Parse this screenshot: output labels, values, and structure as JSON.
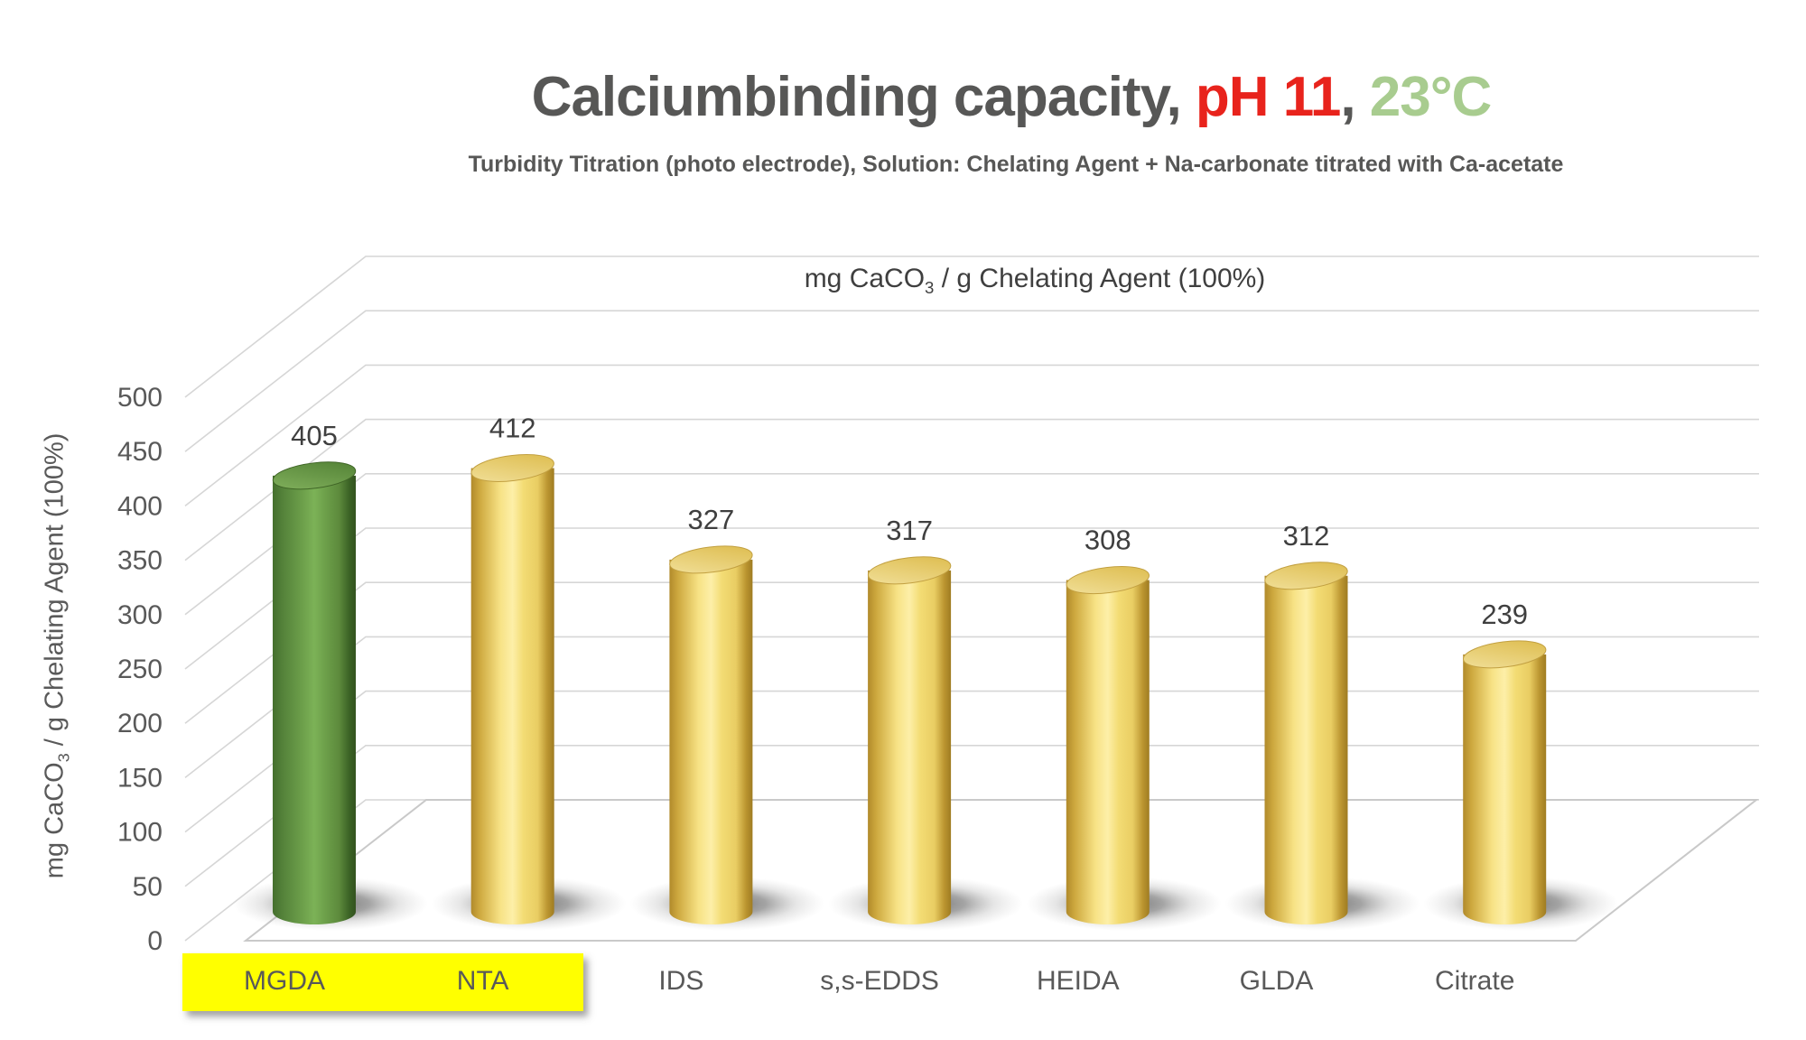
{
  "title": {
    "part1": "Calciumbinding capacity, ",
    "part2": "pH 11",
    "part3": ", ",
    "part4": "23°C"
  },
  "subtitle": "Turbidity Titration (photo electrode), Solution: Chelating Agent + Na-carbonate titrated with Ca-acetate",
  "top_axis_label": {
    "prefix": "mg CaCO",
    "sub": "3",
    "suffix": " / g Chelating Agent (100%)"
  },
  "y_axis_label": {
    "prefix": "mg CaCO",
    "sub": "3",
    "suffix": " / g Chelating Agent (100%)"
  },
  "chart_data": {
    "type": "bar",
    "style": "3d-cylinder",
    "title": "Calciumbinding capacity, pH 11, 23°C",
    "categories": [
      "MGDA",
      "NTA",
      "IDS",
      "s,s-EDDS",
      "HEIDA",
      "GLDA",
      "Citrate"
    ],
    "values": [
      405,
      412,
      327,
      317,
      308,
      312,
      239
    ],
    "bar_styles": [
      "green",
      "yellow",
      "yellow",
      "yellow",
      "yellow",
      "yellow",
      "yellow"
    ],
    "highlighted_categories": [
      "MGDA",
      "NTA"
    ],
    "value_labels_shown": true,
    "ylabel": "mg CaCO3 / g Chelating Agent (100%)",
    "inner_wall_label": "mg CaCO3 / g Chelating Agent (100%)",
    "ylim": [
      0,
      500
    ],
    "ytick_step": 50,
    "grid": true,
    "legend": "none"
  },
  "colors": {
    "title_gray": "#575756",
    "title_red": "#e8231c",
    "title_green": "#a8cc8f",
    "axis_text": "#595959",
    "value_text": "#3f3f3f",
    "gridline": "#d6d6d6",
    "floor_stroke": "#c9c9c9",
    "highlight_yellow": "#ffff00",
    "bar_yellow_dark": "#b18a2b",
    "bar_yellow_mid": "#e9cd63",
    "bar_yellow_light": "#fdefa8",
    "bar_yellow_top_light": "#f2e19c",
    "bar_yellow_top_dark": "#dcba4a",
    "bar_green_dark": "#33531f",
    "bar_green_mid": "#5d8a3c",
    "bar_green_light": "#7cb257",
    "bar_green_top_light": "#83b25e",
    "bar_green_top_dark": "#507f33",
    "shadow": "#4a4a4a"
  }
}
